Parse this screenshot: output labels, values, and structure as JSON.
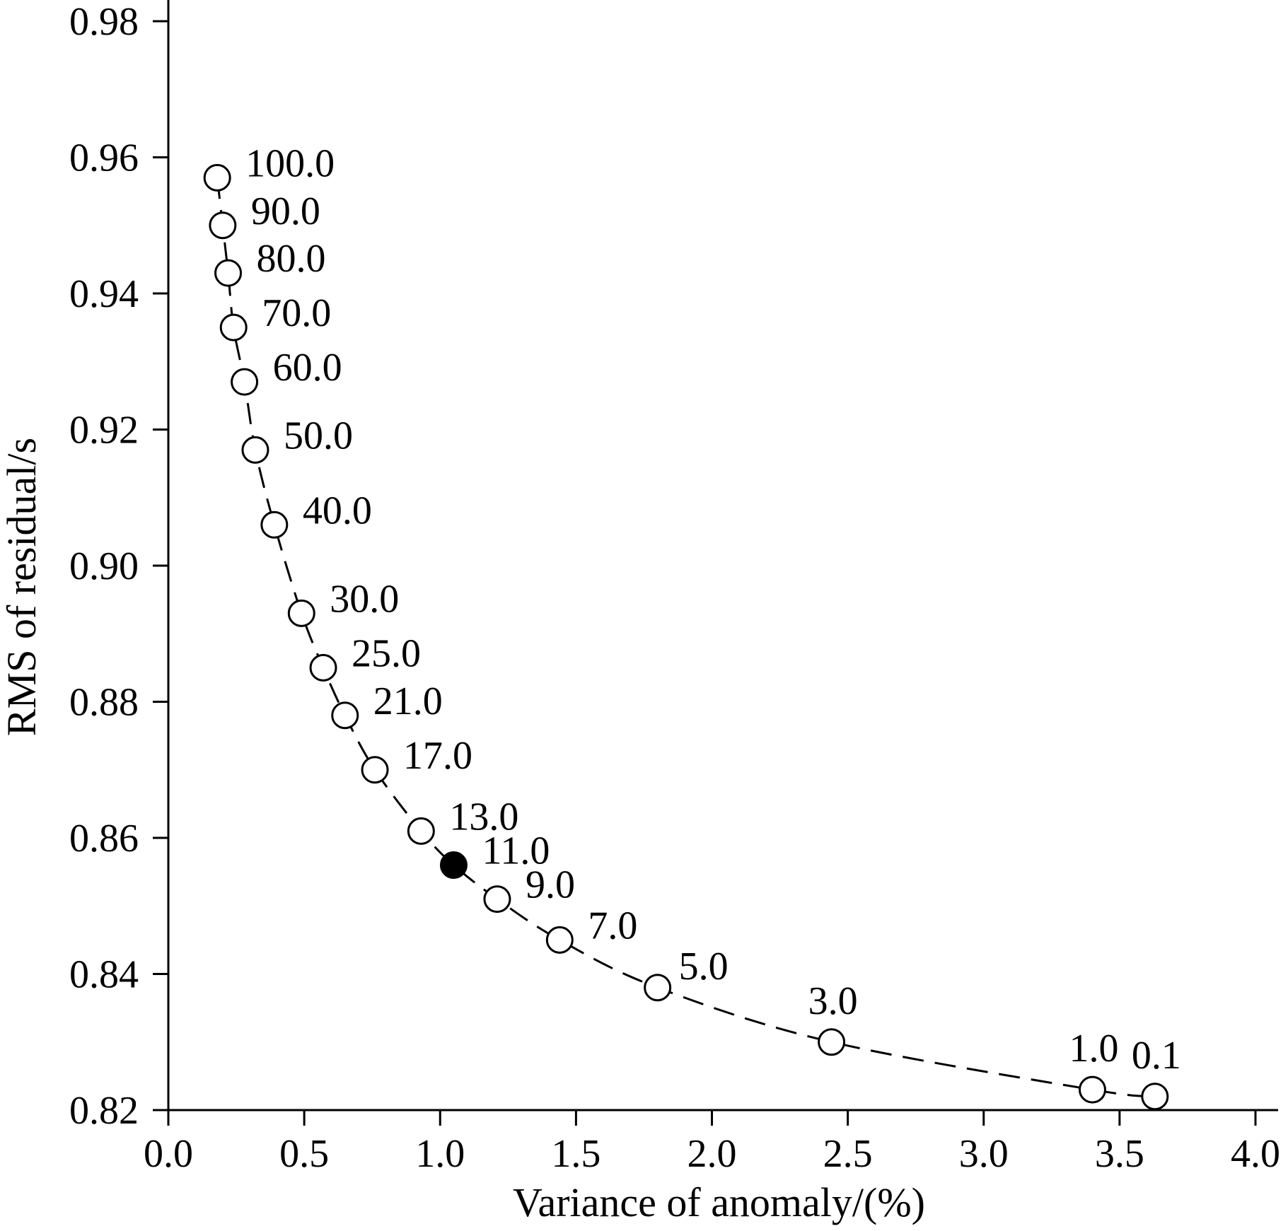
{
  "chart_data": {
    "type": "scatter",
    "title": "",
    "xlabel": "Variance of anomaly/(%)",
    "ylabel": "RMS of residual/s",
    "xlim": [
      0.0,
      4.0
    ],
    "ylim": [
      0.82,
      0.98
    ],
    "x_ticks": [
      "0.0",
      "0.5",
      "1.0",
      "1.5",
      "2.0",
      "2.5",
      "3.0",
      "3.5",
      "4.0"
    ],
    "y_ticks": [
      "0.82",
      "0.84",
      "0.86",
      "0.88",
      "0.90",
      "0.92",
      "0.94",
      "0.96",
      "0.98"
    ],
    "grid": false,
    "legend": "none",
    "line_style": "dashed",
    "marker_color": "#ffffff",
    "highlight_color": "#000000",
    "points": [
      {
        "label": "100.0",
        "x": 0.18,
        "y": 0.957,
        "highlight": false
      },
      {
        "label": "90.0",
        "x": 0.2,
        "y": 0.95,
        "highlight": false
      },
      {
        "label": "80.0",
        "x": 0.22,
        "y": 0.943,
        "highlight": false
      },
      {
        "label": "70.0",
        "x": 0.24,
        "y": 0.935,
        "highlight": false
      },
      {
        "label": "60.0",
        "x": 0.28,
        "y": 0.927,
        "highlight": false
      },
      {
        "label": "50.0",
        "x": 0.32,
        "y": 0.917,
        "highlight": false
      },
      {
        "label": "40.0",
        "x": 0.39,
        "y": 0.906,
        "highlight": false
      },
      {
        "label": "30.0",
        "x": 0.49,
        "y": 0.893,
        "highlight": false
      },
      {
        "label": "25.0",
        "x": 0.57,
        "y": 0.885,
        "highlight": false
      },
      {
        "label": "21.0",
        "x": 0.65,
        "y": 0.878,
        "highlight": false
      },
      {
        "label": "17.0",
        "x": 0.76,
        "y": 0.87,
        "highlight": false
      },
      {
        "label": "13.0",
        "x": 0.93,
        "y": 0.861,
        "highlight": false
      },
      {
        "label": "11.0",
        "x": 1.05,
        "y": 0.856,
        "highlight": true
      },
      {
        "label": "9.0",
        "x": 1.21,
        "y": 0.851,
        "highlight": false
      },
      {
        "label": "7.0",
        "x": 1.44,
        "y": 0.845,
        "highlight": false
      },
      {
        "label": "5.0",
        "x": 1.8,
        "y": 0.838,
        "highlight": false
      },
      {
        "label": "3.0",
        "x": 2.44,
        "y": 0.83,
        "highlight": false
      },
      {
        "label": "1.0",
        "x": 3.4,
        "y": 0.823,
        "highlight": false
      },
      {
        "label": "0.1",
        "x": 3.63,
        "y": 0.822,
        "highlight": false
      }
    ]
  }
}
